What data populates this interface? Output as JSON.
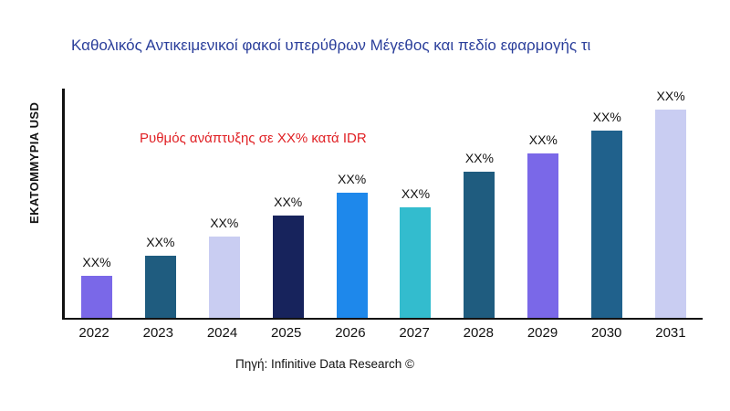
{
  "chart_data": {
    "type": "bar",
    "title": "Καθολικός Αντικειμενικοί φακοί υπερύθρων Μέγεθος και πεδίο εφαρμογής τι",
    "ylabel": "ΕΚΑΤΟΜΜΥΡΙΑ USD",
    "xlabel": "",
    "annotation": "Ρυθμός ανάπτυξης σε XX% κατά IDR",
    "annotation_color": "#e02024",
    "source": "Πηγή: Infinitive Data Research ©",
    "categories": [
      "2022",
      "2023",
      "2024",
      "2025",
      "2026",
      "2027",
      "2028",
      "2029",
      "2030",
      "2031"
    ],
    "values": [
      20,
      30,
      39,
      49,
      60,
      53,
      70,
      79,
      90,
      100
    ],
    "values_note": "relative heights estimated from pixels; actual values masked as XX% in source image",
    "bar_labels": [
      "XX%",
      "XX%",
      "XX%",
      "XX%",
      "XX%",
      "XX%",
      "XX%",
      "XX%",
      "XX%",
      "XX%"
    ],
    "bar_colors": [
      "#7a68e8",
      "#1f5c7f",
      "#c9cdf2",
      "#17235c",
      "#1e88eb",
      "#33bcce",
      "#1f5c7f",
      "#7a68e8",
      "#20618c",
      "#c9cdf2"
    ],
    "ylim": [
      0,
      110
    ],
    "grid": false,
    "legend": "none",
    "title_color": "#2b3f9b"
  }
}
